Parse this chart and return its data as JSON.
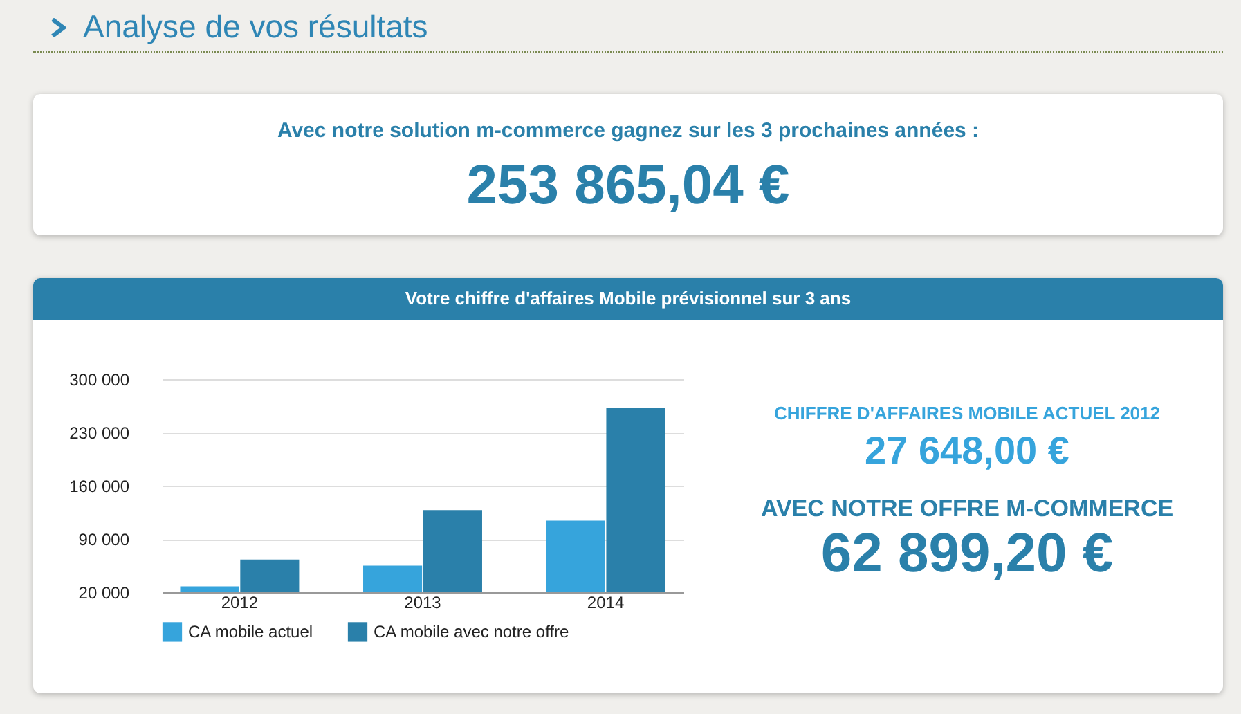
{
  "chart_data": {
    "type": "bar",
    "title": "Votre chiffre d'affaires Mobile prévisionnel sur 3 ans",
    "categories": [
      "2012",
      "2013",
      "2014"
    ],
    "series": [
      {
        "name": "CA mobile actuel",
        "color": "#36a4dc",
        "values": [
          27648,
          55000,
          114000
        ]
      },
      {
        "name": "CA mobile avec notre offre",
        "color": "#2a80aa",
        "values": [
          62899.2,
          128000,
          262000
        ]
      }
    ],
    "ylim": [
      20000,
      300000
    ],
    "yticks": [
      {
        "value": 20000,
        "label": "20 000"
      },
      {
        "value": 90000,
        "label": "90 000"
      },
      {
        "value": 160000,
        "label": "160 000"
      },
      {
        "value": 230000,
        "label": "230 000"
      },
      {
        "value": 300000,
        "label": "300 000"
      }
    ],
    "grid": "y",
    "legend": "bottom",
    "annotations": [
      "Analyse de vos résultats",
      "Avec notre solution m-commerce gagnez sur les 3 prochaines années :",
      "253 865,04 €",
      "CHIFFRE D'AFFAIRES MOBILE ACTUEL 2012",
      "27 648,00 €",
      "AVEC NOTRE OFFRE M-COMMERCE",
      "62 899,20 €"
    ]
  }
}
